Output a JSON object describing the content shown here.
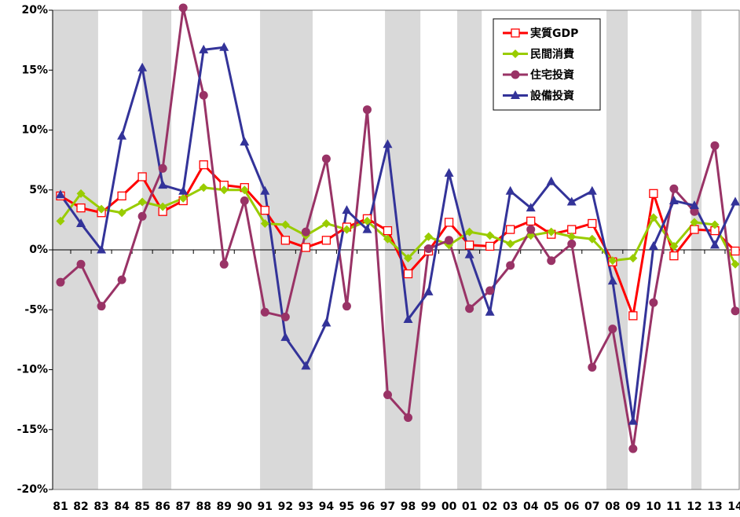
{
  "chart_data": {
    "type": "line",
    "categories": [
      "81",
      "82",
      "83",
      "84",
      "85",
      "86",
      "87",
      "88",
      "89",
      "90",
      "91",
      "92",
      "93",
      "94",
      "95",
      "96",
      "97",
      "98",
      "99",
      "00",
      "01",
      "02",
      "03",
      "04",
      "05",
      "06",
      "07",
      "08",
      "09",
      "10",
      "11",
      "12",
      "13",
      "14"
    ],
    "ylim": [
      -20,
      20
    ],
    "yticks": [
      {
        "value": -20,
        "label": "-20%"
      },
      {
        "value": -15,
        "label": "-15%"
      },
      {
        "value": -10,
        "label": "-10%"
      },
      {
        "value": -5,
        "label": "-5%"
      },
      {
        "value": 0,
        "label": "0%"
      },
      {
        "value": 5,
        "label": "5%"
      },
      {
        "value": 10,
        "label": "10%"
      },
      {
        "value": 15,
        "label": "15%"
      },
      {
        "value": 20,
        "label": "20%"
      }
    ],
    "shaded_ranges": [
      [
        -0.38,
        1.84
      ],
      [
        4.0,
        5.42
      ],
      [
        9.76,
        12.33
      ],
      [
        15.87,
        17.6
      ],
      [
        19.4,
        20.6
      ],
      [
        26.7,
        27.74
      ],
      [
        30.85,
        31.35
      ]
    ],
    "shade_color": "#d9d9d9",
    "legend_position": "upper right",
    "series": [
      {
        "name": "実質GDP",
        "color": "#ff0000",
        "marker": "square-open",
        "values": [
          4.5,
          3.5,
          3.1,
          4.5,
          6.1,
          3.2,
          4.1,
          7.1,
          5.4,
          5.2,
          3.3,
          0.8,
          0.2,
          0.8,
          1.9,
          2.6,
          1.6,
          -2.0,
          -0.1,
          2.3,
          0.4,
          0.3,
          1.7,
          2.4,
          1.3,
          1.7,
          2.2,
          -1.0,
          -5.5,
          4.7,
          -0.5,
          1.7,
          1.6,
          -0.1
        ]
      },
      {
        "name": "民間消費",
        "color": "#99cc00",
        "marker": "diamond",
        "values": [
          2.4,
          4.7,
          3.4,
          3.1,
          4.0,
          3.6,
          4.3,
          5.2,
          5.0,
          5.0,
          2.2,
          2.1,
          1.2,
          2.2,
          1.7,
          2.4,
          0.9,
          -0.7,
          1.1,
          0.4,
          1.5,
          1.2,
          0.5,
          1.2,
          1.5,
          1.1,
          0.9,
          -0.9,
          -0.7,
          2.7,
          0.3,
          2.3,
          2.1,
          -1.2
        ]
      },
      {
        "name": "住宅投資",
        "color": "#993366",
        "marker": "circle",
        "values": [
          -2.7,
          -1.2,
          -4.7,
          -2.5,
          2.8,
          6.8,
          20.2,
          12.9,
          -1.2,
          4.1,
          -5.2,
          -5.6,
          1.5,
          7.6,
          -4.7,
          11.7,
          -12.1,
          -14.0,
          0.1,
          0.8,
          -4.9,
          -3.4,
          -1.3,
          1.7,
          -0.9,
          0.5,
          -9.8,
          -6.6,
          -16.6,
          -4.4,
          5.1,
          3.2,
          8.7,
          -5.1
        ]
      },
      {
        "name": "設備投資",
        "color": "#333399",
        "marker": "triangle",
        "values": [
          4.6,
          2.2,
          0.0,
          9.5,
          15.2,
          5.4,
          4.9,
          16.7,
          16.9,
          9.0,
          4.9,
          -7.3,
          -9.7,
          -6.1,
          3.3,
          1.7,
          8.8,
          -5.8,
          -3.5,
          6.4,
          -0.4,
          -5.2,
          4.9,
          3.5,
          5.7,
          4.0,
          4.9,
          -2.6,
          -14.3,
          0.3,
          4.1,
          3.7,
          0.4,
          4.0
        ]
      }
    ]
  }
}
